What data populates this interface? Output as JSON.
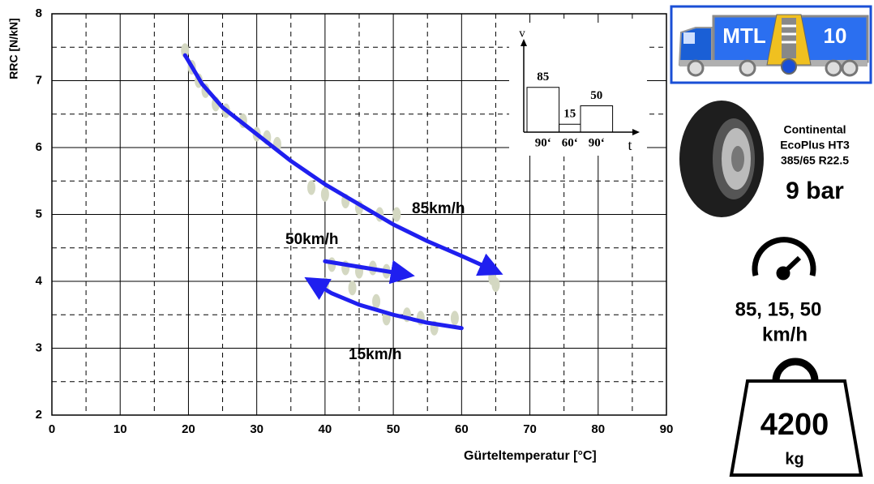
{
  "chart_data": {
    "type": "line",
    "x_label": "Gürteltemperatur [°C]",
    "y_label": "RRC [N/kN]",
    "xlim": [
      0,
      90
    ],
    "xticks": [
      0,
      10,
      20,
      30,
      40,
      50,
      60,
      70,
      80,
      90
    ],
    "ylim": [
      2,
      8
    ],
    "yticks": [
      2,
      3,
      4,
      5,
      6,
      7,
      8
    ],
    "grid": true,
    "annotations": [
      "85km/h",
      "50km/h",
      "15km/h"
    ],
    "series": [
      {
        "color": "#d4d8c2",
        "marker": true,
        "x": [
          19.5,
          20.5,
          21.5,
          22.5,
          24,
          25.5,
          28,
          30,
          31.5,
          33,
          38,
          40,
          43,
          45,
          48,
          50.5,
          41,
          43,
          45,
          47,
          49,
          40,
          44,
          47.5,
          49,
          52,
          54,
          56,
          59,
          64.5,
          65
        ],
        "values": [
          7.45,
          7.2,
          7.0,
          6.85,
          6.65,
          6.55,
          6.4,
          6.2,
          6.15,
          6.05,
          5.4,
          5.3,
          5.2,
          5.1,
          5.0,
          5.0,
          4.25,
          4.2,
          4.15,
          4.2,
          4.15,
          3.95,
          3.9,
          3.7,
          3.45,
          3.5,
          3.45,
          3.3,
          3.45,
          4.05,
          3.95
        ]
      },
      {
        "color": "#1f1fef",
        "marker": false,
        "x": [
          19.5,
          22,
          25,
          30,
          35,
          40,
          45,
          50,
          55,
          60,
          65
        ],
        "values": [
          7.38,
          6.95,
          6.6,
          6.2,
          5.8,
          5.45,
          5.15,
          4.85,
          4.6,
          4.38,
          4.15
        ]
      },
      {
        "color": "#1f1fef",
        "marker": false,
        "x": [
          40,
          46,
          52
        ],
        "values": [
          4.3,
          4.2,
          4.1
        ]
      },
      {
        "color": "#1f1fef",
        "marker": false,
        "x": [
          60,
          55,
          50,
          45,
          41,
          38
        ],
        "values": [
          3.3,
          3.38,
          3.5,
          3.65,
          3.82,
          4.0
        ]
      }
    ],
    "inset": {
      "v_label": "v",
      "t_label": "t",
      "speeds": [
        85,
        15,
        50
      ],
      "durations": [
        {
          "value": 90,
          "label": "90‘"
        },
        {
          "value": 60,
          "label": "60‘"
        },
        {
          "value": 90,
          "label": "90‘"
        }
      ]
    }
  },
  "panel": {
    "badge": "MTL",
    "badge_number": "10",
    "tire": [
      "Continental",
      "EcoPlus HT3",
      "385/65 R22.5"
    ],
    "pressure": "9 bar",
    "speeds": "85, 15, 50",
    "speed_unit": "km/h",
    "load": "4200",
    "load_unit": "kg"
  }
}
